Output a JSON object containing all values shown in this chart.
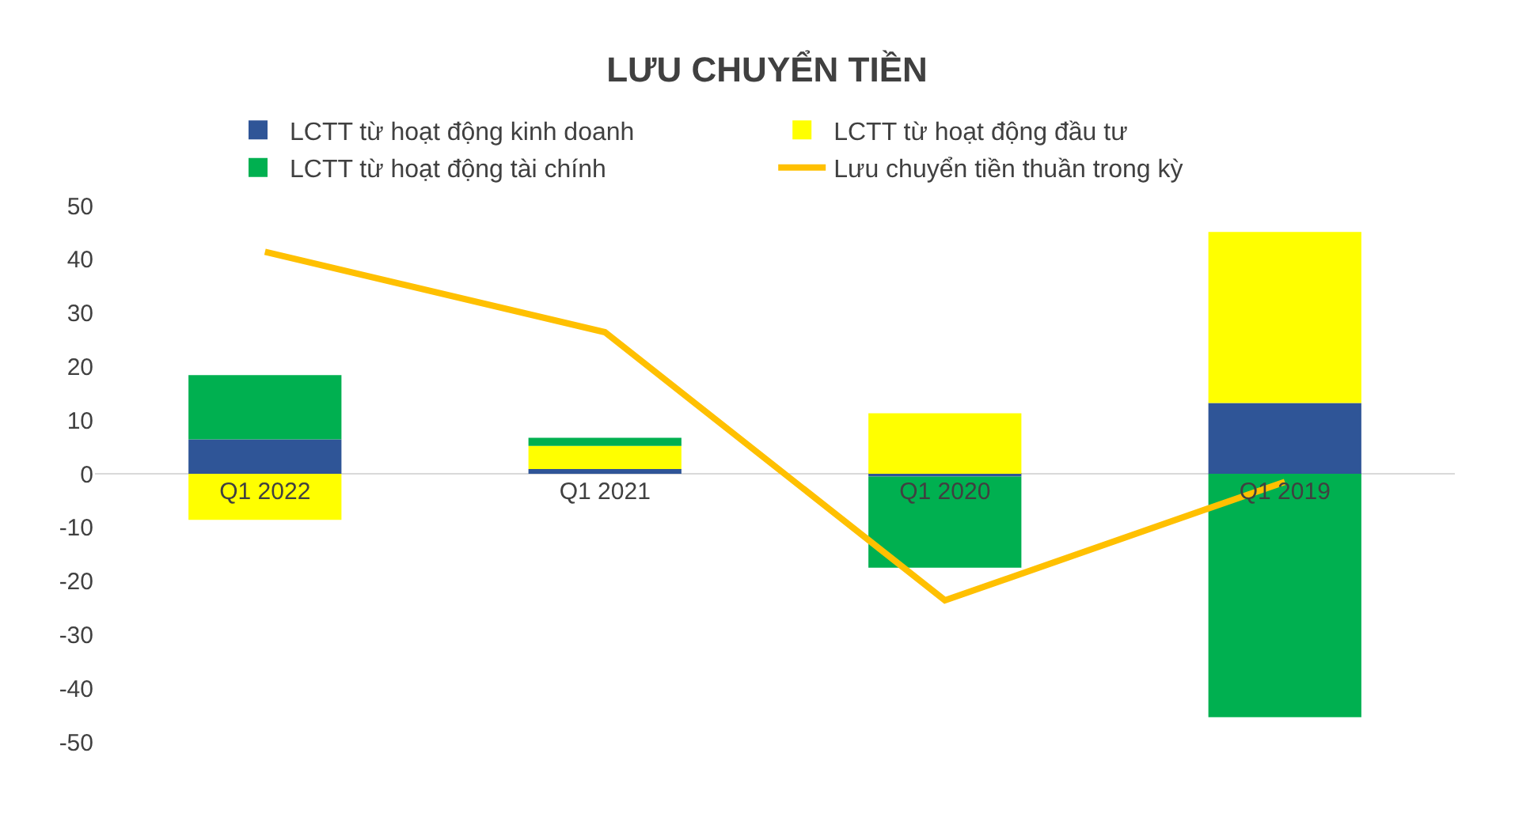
{
  "chart_data": {
    "type": "bar",
    "title": "LƯU CHUYỂN TIỀN",
    "stacked": true,
    "categories": [
      "Q1 2022",
      "Q1 2021",
      "Q1 2020",
      "Q1 2019"
    ],
    "series": [
      {
        "name": "LCTT từ hoạt động kinh doanh",
        "color": "#2f5597",
        "values": [
          6.4,
          0.9,
          -0.5,
          13.2
        ]
      },
      {
        "name": "LCTT từ hoạt động đầu tư",
        "color": "#ffff00",
        "values": [
          -8.6,
          4.3,
          11.3,
          31.9
        ]
      },
      {
        "name": "LCTT từ hoạt động tài chính",
        "color": "#00b050",
        "values": [
          12,
          1.5,
          -17,
          -45.4
        ]
      },
      {
        "name": "Lưu chuyển tiền thuần trong kỳ",
        "color": "#ffc000",
        "type": "line",
        "values": [
          41.4,
          26.4,
          -23.6,
          -1.5
        ]
      }
    ],
    "ylim": [
      -50,
      50
    ],
    "yticks": [
      -50,
      -40,
      -30,
      -20,
      -10,
      0,
      10,
      20,
      30,
      40,
      50
    ],
    "legend": "top",
    "marker": "none",
    "line_style": "solid"
  }
}
